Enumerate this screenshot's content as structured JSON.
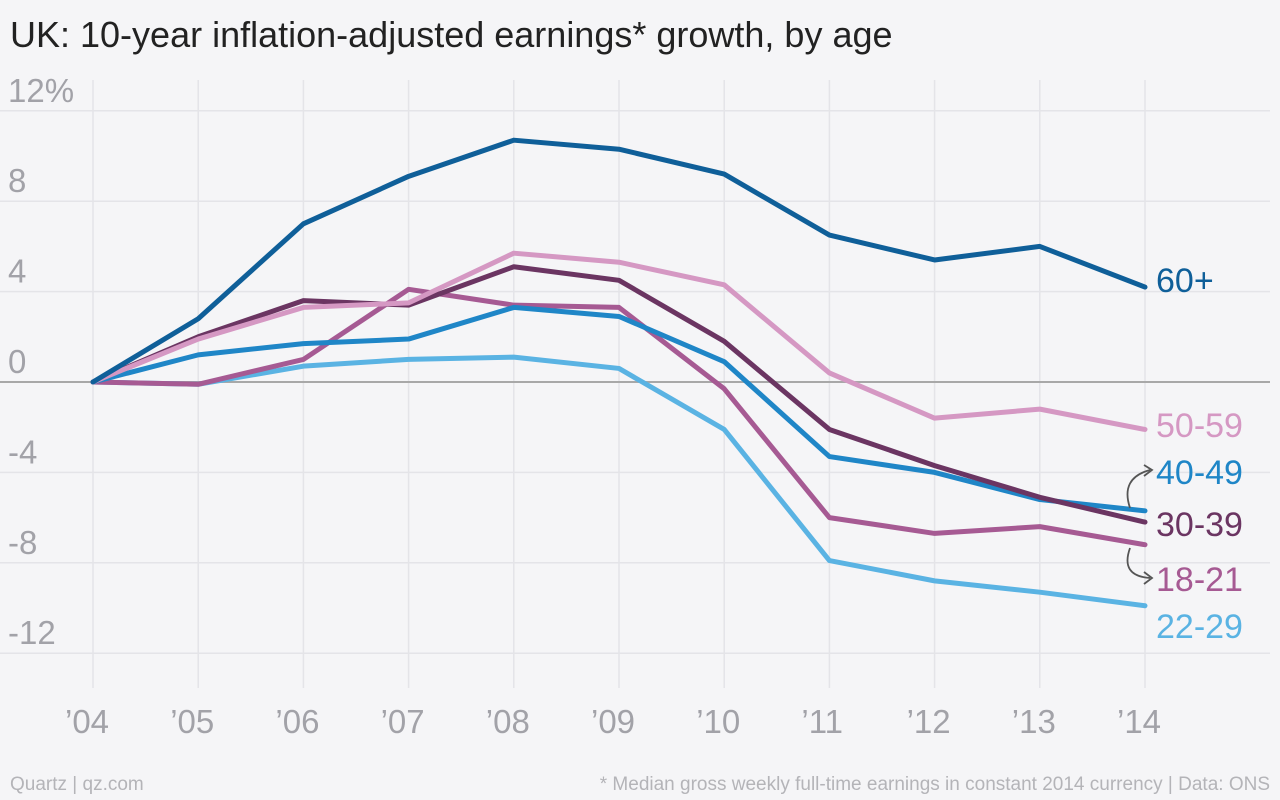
{
  "title": "UK: 10-year inflation-adjusted earnings* growth, by age",
  "footer": {
    "source": "Quartz | qz.com",
    "note": "* Median gross weekly full-time earnings in constant 2014 currency | Data: ONS"
  },
  "colors": {
    "background": "#f5f5f7",
    "grid": "#e4e4e8",
    "zero_line": "#a8a8a8",
    "tick_text": "#a2a2a8",
    "arrow": "#555555"
  },
  "chart_data": {
    "type": "line",
    "ylim": [
      -13.5,
      13
    ],
    "yticks": [
      {
        "value": 12,
        "label": "12%"
      },
      {
        "value": 8,
        "label": "8"
      },
      {
        "value": 4,
        "label": "4"
      },
      {
        "value": 0,
        "label": "0"
      },
      {
        "value": -4,
        "label": "-4"
      },
      {
        "value": -8,
        "label": "-8"
      },
      {
        "value": -12,
        "label": "-12"
      }
    ],
    "categories": [
      "’04",
      "’05",
      "’06",
      "’07",
      "’08",
      "’09",
      "’10",
      "’11",
      "’12",
      "’13",
      "’14"
    ],
    "grid": true,
    "series": [
      {
        "name": "60+",
        "color": "#0f5f99",
        "values": [
          0,
          2.8,
          7.0,
          9.1,
          10.7,
          10.3,
          9.2,
          6.5,
          5.4,
          6.0,
          4.2
        ]
      },
      {
        "name": "50-59",
        "color": "#d598c3",
        "values": [
          0,
          1.9,
          3.3,
          3.5,
          5.7,
          5.3,
          4.3,
          0.4,
          -1.6,
          -1.2,
          -2.1
        ]
      },
      {
        "name": "40-49",
        "color": "#1f86c7",
        "values": [
          0,
          1.2,
          1.7,
          1.9,
          3.3,
          2.9,
          0.9,
          -3.3,
          -4.0,
          -5.2,
          -5.7
        ]
      },
      {
        "name": "30-39",
        "color": "#6b3562",
        "values": [
          0,
          2.0,
          3.6,
          3.4,
          5.1,
          4.5,
          1.8,
          -2.1,
          -3.7,
          -5.1,
          -6.2
        ]
      },
      {
        "name": "18-21",
        "color": "#a65a93",
        "values": [
          0,
          -0.1,
          1.0,
          4.1,
          3.4,
          3.3,
          -0.3,
          -6.0,
          -6.7,
          -6.4,
          -7.2
        ]
      },
      {
        "name": "22-29",
        "color": "#5ab3e3",
        "values": [
          0,
          -0.1,
          0.7,
          1.0,
          1.1,
          0.6,
          -2.1,
          -7.9,
          -8.8,
          -9.3,
          -9.9
        ]
      }
    ]
  }
}
